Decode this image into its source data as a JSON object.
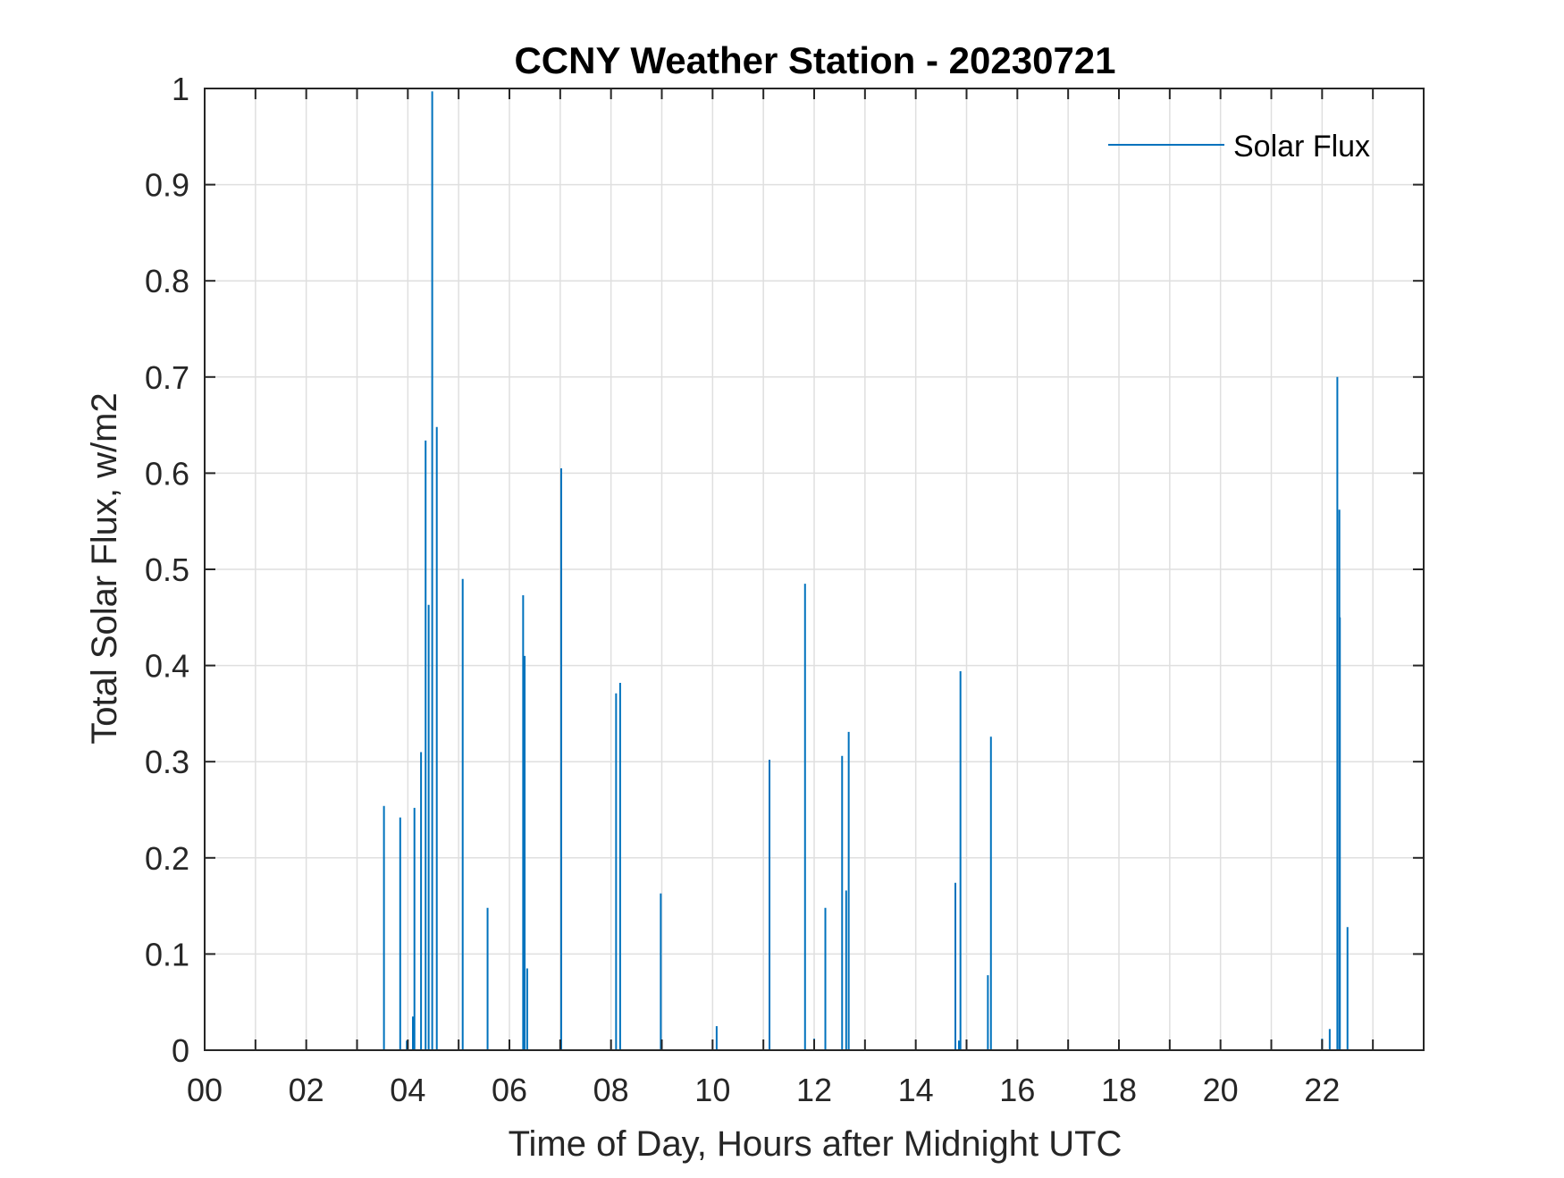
{
  "chart_data": {
    "type": "line",
    "title": "CCNY Weather Station - 20230721",
    "xlabel": "Time of Day, Hours after Midnight UTC",
    "ylabel": "Total Solar Flux, w/m2",
    "xlim": [
      0,
      24
    ],
    "ylim": [
      0,
      1
    ],
    "grid": true,
    "legend_position": "top-right",
    "x_ticks": [
      0,
      2,
      4,
      6,
      8,
      10,
      12,
      14,
      16,
      18,
      20,
      22
    ],
    "x_tick_labels": [
      "00",
      "02",
      "04",
      "06",
      "08",
      "10",
      "12",
      "14",
      "16",
      "18",
      "20",
      "22"
    ],
    "x_minor_ticks": [
      1,
      3,
      5,
      7,
      9,
      11,
      13,
      15,
      17,
      19,
      21,
      23
    ],
    "y_ticks": [
      0,
      0.1,
      0.2,
      0.3,
      0.4,
      0.5,
      0.6,
      0.7,
      0.8,
      0.9,
      1
    ],
    "y_tick_labels": [
      "0",
      "0.1",
      "0.2",
      "0.3",
      "0.4",
      "0.5",
      "0.6",
      "0.7",
      "0.8",
      "0.9",
      "1"
    ],
    "colors": {
      "series": "#0072BD",
      "grid": "#dfdfdf",
      "axis": "#262626"
    },
    "series": [
      {
        "name": "Solar Flux",
        "spikes": [
          [
            3.53,
            0.254
          ],
          [
            3.85,
            0.242
          ],
          [
            3.98,
            0.01
          ],
          [
            4.1,
            0.035
          ],
          [
            4.13,
            0.252
          ],
          [
            4.26,
            0.31
          ],
          [
            4.35,
            0.634
          ],
          [
            4.41,
            0.463
          ],
          [
            4.48,
            0.997
          ],
          [
            4.57,
            0.648
          ],
          [
            5.08,
            0.49
          ],
          [
            5.57,
            0.148
          ],
          [
            6.27,
            0.473
          ],
          [
            6.3,
            0.41
          ],
          [
            6.35,
            0.085
          ],
          [
            7.02,
            0.605
          ],
          [
            8.1,
            0.371
          ],
          [
            8.18,
            0.382
          ],
          [
            8.98,
            0.163
          ],
          [
            10.08,
            0.025
          ],
          [
            11.12,
            0.302
          ],
          [
            11.82,
            0.485
          ],
          [
            12.0,
            0.012
          ],
          [
            12.22,
            0.148
          ],
          [
            12.55,
            0.306
          ],
          [
            12.63,
            0.166
          ],
          [
            12.68,
            0.331
          ],
          [
            14.78,
            0.174
          ],
          [
            14.85,
            0.01
          ],
          [
            14.88,
            0.394
          ],
          [
            15.42,
            0.078
          ],
          [
            15.48,
            0.326
          ],
          [
            22.0,
            0.012
          ],
          [
            22.15,
            0.022
          ],
          [
            22.3,
            0.7
          ],
          [
            22.34,
            0.562
          ],
          [
            22.35,
            0.45
          ],
          [
            22.5,
            0.128
          ]
        ]
      }
    ]
  }
}
